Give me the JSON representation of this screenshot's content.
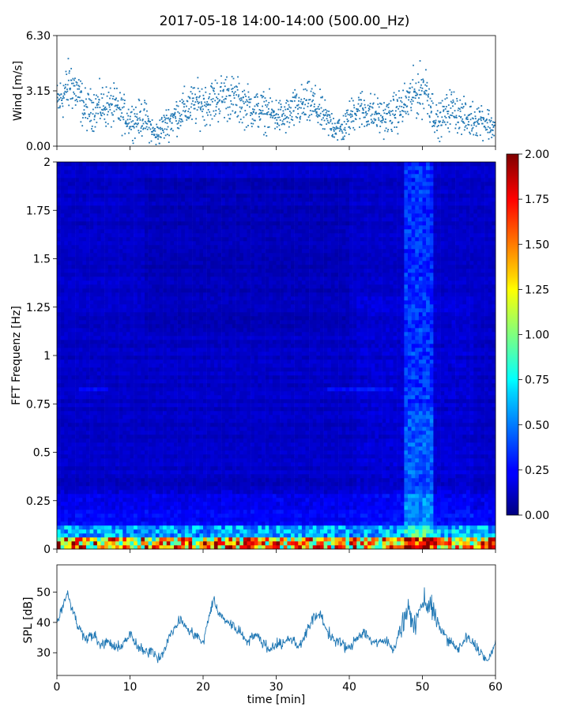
{
  "title": "2017-05-18 14:00-14:00 (500.00_Hz)",
  "chart_data": [
    {
      "id": "wind",
      "type": "scatter",
      "ylabel": "Wind [m/s]",
      "xlim": [
        0,
        60
      ],
      "ylim": [
        0,
        6.3
      ],
      "yticks": [
        "0.00",
        "3.15",
        "6.30"
      ],
      "ytick_values": [
        0,
        3.15,
        6.3
      ],
      "color": "#1f77b4",
      "envelope": {
        "x": [
          0,
          2,
          4,
          6,
          8,
          10,
          12,
          13.5,
          15,
          17,
          19,
          21,
          23,
          25,
          27,
          29,
          31,
          33,
          35,
          37,
          39,
          41,
          43,
          45,
          47,
          49,
          50.5,
          52,
          54,
          56,
          58,
          60
        ],
        "y": [
          2.4,
          3.6,
          2.0,
          2.3,
          2.2,
          1.5,
          1.6,
          0.6,
          1.3,
          2.0,
          2.4,
          2.5,
          2.9,
          2.5,
          2.1,
          1.9,
          1.6,
          2.2,
          2.4,
          1.4,
          0.9,
          2.2,
          1.9,
          1.6,
          2.1,
          3.0,
          3.3,
          1.3,
          2.2,
          1.5,
          1.6,
          1.0
        ]
      }
    },
    {
      "id": "spectrogram",
      "type": "heatmap",
      "ylabel": "FFT Frequenz [Hz]",
      "xlim": [
        0,
        60
      ],
      "ylim": [
        0,
        2
      ],
      "yticks": [
        "0",
        "0.25",
        "0.5",
        "0.75",
        "1",
        "1.25",
        "1.5",
        "1.75",
        "2"
      ],
      "ytick_values": [
        0,
        0.25,
        0.5,
        0.75,
        1,
        1.25,
        1.5,
        1.75,
        2
      ],
      "colormap": "jet",
      "colorbar": {
        "range": [
          0,
          2
        ],
        "ticks": [
          "0.00",
          "0.25",
          "0.50",
          "0.75",
          "1.00",
          "1.25",
          "1.50",
          "1.75",
          "2.00"
        ],
        "tick_values": [
          0,
          0.25,
          0.5,
          0.75,
          1,
          1.25,
          1.5,
          1.75,
          2
        ]
      },
      "bright_band_x": [
        47.5,
        51.5
      ],
      "bright_line_frequency": 0.82
    },
    {
      "id": "spl",
      "type": "line",
      "ylabel": "SPL [dB]",
      "xlabel": "time [min]",
      "xlim": [
        0,
        60
      ],
      "ylim": [
        22.5,
        59
      ],
      "xticks": [
        "0",
        "10",
        "20",
        "30",
        "40",
        "50",
        "60"
      ],
      "xtick_values": [
        0,
        10,
        20,
        30,
        40,
        50,
        60
      ],
      "yticks": [
        "30",
        "40",
        "50"
      ],
      "ytick_values": [
        30,
        40,
        50
      ],
      "color": "#1f77b4",
      "x": [
        0,
        1,
        1.5,
        2,
        3,
        4,
        5,
        6,
        7,
        8,
        9,
        10,
        11,
        12,
        13,
        14,
        15,
        16,
        17,
        18,
        19,
        20,
        21,
        21.5,
        22,
        23,
        24,
        25,
        26,
        27,
        28,
        29,
        30,
        31,
        32,
        33,
        34,
        35,
        36,
        37,
        38,
        39,
        40,
        41,
        42,
        43,
        44,
        45,
        46,
        47,
        48,
        49,
        50,
        51,
        52,
        53,
        54,
        55,
        56,
        57,
        58,
        59,
        60
      ],
      "y": [
        40,
        47,
        50,
        45,
        38,
        35,
        36,
        32,
        34,
        31,
        33,
        36,
        32,
        30,
        31,
        28,
        33,
        38,
        41,
        37,
        36,
        33,
        44,
        48,
        43,
        41,
        39,
        37,
        34,
        36,
        34,
        31,
        33,
        33,
        35,
        32,
        36,
        41,
        43,
        37,
        34,
        33,
        31,
        35,
        37,
        34,
        33,
        34,
        31,
        38,
        44,
        39,
        47,
        46,
        40,
        36,
        33,
        31,
        35,
        33,
        30,
        27,
        33
      ]
    }
  ]
}
